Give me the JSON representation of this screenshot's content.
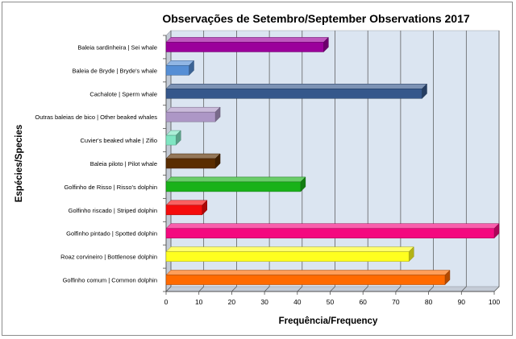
{
  "chart_data": {
    "type": "bar",
    "orientation": "horizontal",
    "title": "Observações de Setembro/September Observations 2017",
    "xlabel": "Frequência/Frequency",
    "ylabel": "Espécies/Species",
    "xlim": [
      0,
      100
    ],
    "xticks": [
      "0",
      "10",
      "20",
      "30",
      "40",
      "50",
      "60",
      "70",
      "80",
      "90",
      "100"
    ],
    "grid": true,
    "legend": "none",
    "categories": [
      "Baleia sardinheira | Sei whale",
      "Baleia de Bryde | Bryde's whale",
      "Cachalote | Sperm whale",
      "Outras baleias de bico | Other beaked whales",
      "Cuvier's beaked whale | Zifio",
      "Baleia piloto | Pilot whale",
      "Golfinho de Risso | Risso's dolphin",
      "Golfinho riscado | Striped dolphin",
      "Golfinho pintado | Spotted dolphin",
      "Roaz corvineiro | Bottlenose dolphin",
      "Golfinho comum | Common dolphin"
    ],
    "values": [
      48,
      7,
      78,
      15,
      3,
      15,
      41,
      11,
      100,
      74,
      85
    ],
    "colors": [
      "#9b009b",
      "#558ed5",
      "#35578b",
      "#ad97c6",
      "#7fe6c2",
      "#5a2d00",
      "#19b219",
      "#f50c0c",
      "#f4097f",
      "#ffff1f",
      "#ff6a00"
    ]
  }
}
